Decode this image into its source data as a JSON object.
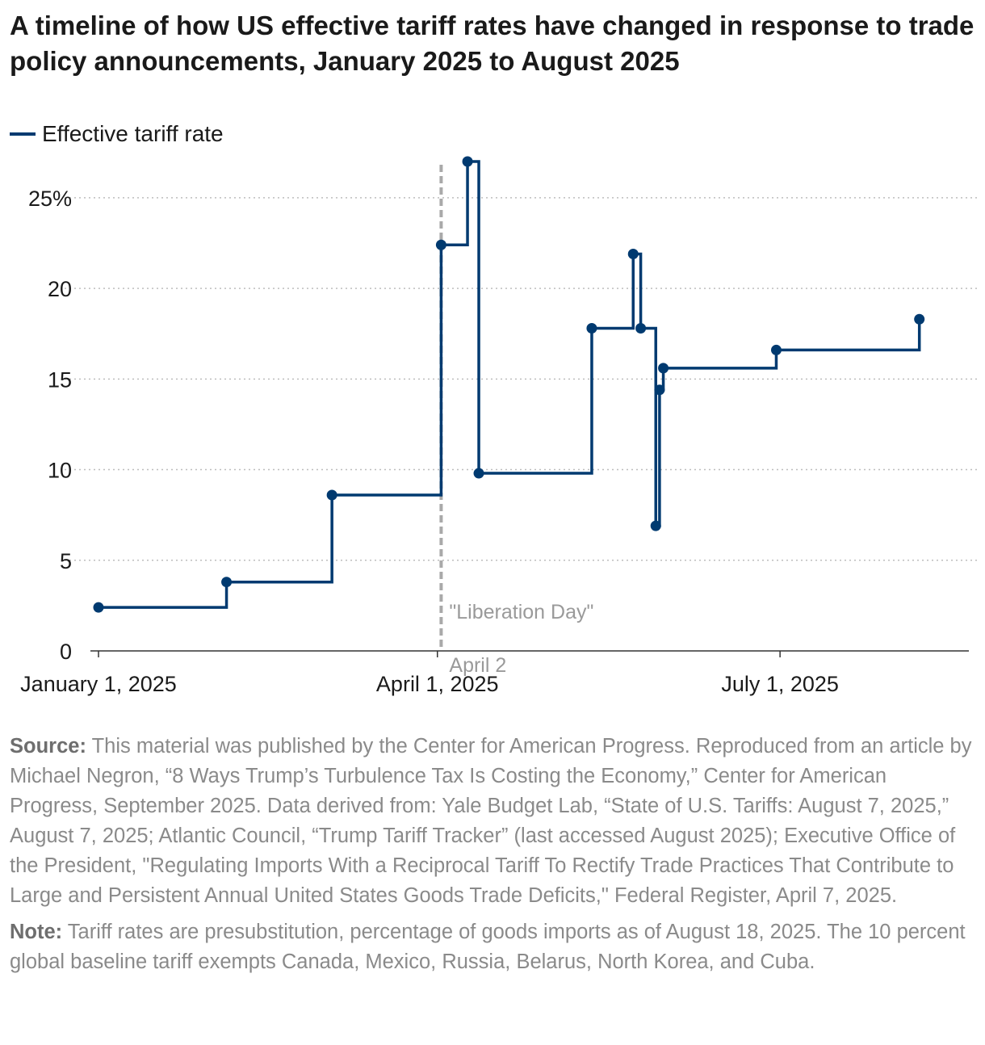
{
  "title": "A timeline of how US effective tariff rates have changed in response to trade policy announcements, January 2025 to August 2025",
  "legend": {
    "label": "Effective tariff rate",
    "color": "#003a70"
  },
  "chart_data": {
    "type": "line",
    "step": "after",
    "title": "A timeline of how US effective tariff rates have changed in response to trade policy announcements, January 2025 to August 2025",
    "xlabel": "",
    "ylabel": "",
    "xlim": [
      "2025-01-01",
      "2025-08-18"
    ],
    "ylim": [
      0,
      27
    ],
    "y_ticks": [
      0,
      5,
      10,
      15,
      20,
      25
    ],
    "y_tick_labels": [
      "0",
      "5",
      "10",
      "15",
      "20",
      "25%"
    ],
    "x_ticks": [
      "2025-01-01",
      "2025-04-01",
      "2025-07-01"
    ],
    "x_tick_labels": [
      "January 1, 2025",
      "April 1, 2025",
      "July 1, 2025"
    ],
    "grid": "horizontal dotted",
    "legend_position": "top-left",
    "series": [
      {
        "name": "Effective tariff rate",
        "color": "#003a70",
        "x": [
          "2025-01-01",
          "2025-02-04",
          "2025-03-04",
          "2025-04-02",
          "2025-04-09",
          "2025-04-12",
          "2025-05-12",
          "2025-05-23",
          "2025-05-25",
          "2025-05-29",
          "2025-05-30",
          "2025-05-31",
          "2025-06-30",
          "2025-08-07"
        ],
        "y": [
          2.4,
          3.8,
          8.6,
          22.4,
          27.0,
          9.8,
          17.8,
          21.9,
          17.8,
          6.9,
          14.4,
          15.6,
          16.6,
          18.3
        ]
      }
    ],
    "annotations": [
      {
        "x": "2025-04-02",
        "label": "\"Liberation Day\"",
        "sublabel": "April 2",
        "color": "#a9a9a9"
      }
    ]
  },
  "footer": {
    "source_label": "Source:",
    "source_text": " This material was published by the Center for American Progress. Reproduced from an article by Michael Negron, “8 Ways Trump’s Turbulence Tax Is Costing the Economy,” Center for American Progress, September 2025. Data derived from: Yale Budget Lab, “State of U.S. Tariffs: August 7, 2025,” August 7, 2025; Atlantic Council, “Trump Tariff Tracker” (last accessed August 2025); Executive Office of the President, \"Regulating Imports With a Reciprocal Tariff To Rectify Trade Practices That Contribute to Large and Persistent Annual United States Goods Trade Deficits,\" Federal Register, April 7, 2025.",
    "note_label": "Note:",
    "note_text": " Tariff rates are presubstitution, percentage of goods imports as of August 18, 2025. The 10 percent global baseline tariff exempts Canada, Mexico, Russia, Belarus, North Korea, and Cuba."
  }
}
